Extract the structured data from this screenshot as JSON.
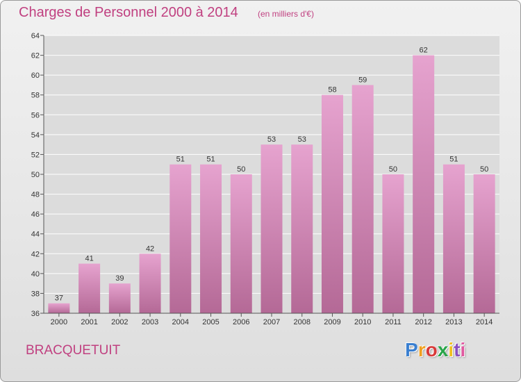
{
  "header": {
    "title": "Charges de Personnel 2000 à 2014",
    "unit": "(en milliers d'€)"
  },
  "footer": {
    "commune": "BRACQUETUIT",
    "logo": "Proxiti",
    "logo_colors": [
      "#3a7fd0",
      "#f0a020",
      "#d83a3a",
      "#2aa54a",
      "#f0c020",
      "#8a4fc0",
      "#e05aa0"
    ]
  },
  "colors": {
    "accent": "#c04080",
    "bar_top": "#e6a3cf",
    "bar_bottom": "#b46996",
    "grid": "#ffffff"
  },
  "chart_data": {
    "type": "bar",
    "title": "Charges de Personnel 2000 à 2014",
    "subtitle": "(en milliers d'€)",
    "categories": [
      "2000",
      "2001",
      "2002",
      "2003",
      "2004",
      "2005",
      "2006",
      "2007",
      "2008",
      "2009",
      "2010",
      "2011",
      "2012",
      "2013",
      "2014"
    ],
    "values": [
      37,
      41,
      39,
      42,
      51,
      51,
      50,
      53,
      53,
      58,
      59,
      50,
      62,
      51,
      50
    ],
    "xlabel": "",
    "ylabel": "",
    "ylim": [
      36,
      64
    ],
    "yticks": [
      36,
      38,
      40,
      42,
      44,
      46,
      48,
      50,
      52,
      54,
      56,
      58,
      60,
      62,
      64
    ],
    "grid": true,
    "data_labels": true
  }
}
